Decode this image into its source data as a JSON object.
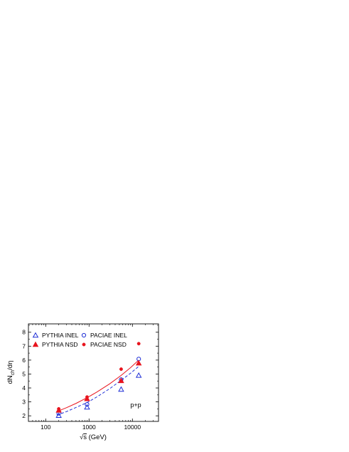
{
  "chart_data": {
    "type": "scatter",
    "x_scale": "log",
    "xlim": [
      40,
      40000
    ],
    "ylim": [
      1.6,
      8.6
    ],
    "x_ticks": [
      100,
      1000,
      10000
    ],
    "x_tick_labels": [
      "100",
      "1000",
      "10000"
    ],
    "y_ticks": [
      2,
      3,
      4,
      5,
      6,
      7,
      8
    ],
    "y_tick_labels": [
      "2",
      "3",
      "4",
      "5",
      "6",
      "7",
      "8"
    ],
    "xlabel_prefix": "√",
    "xlabel_var": "s",
    "xlabel_unit": " (GeV)",
    "ylabel_main": "dN",
    "ylabel_sub": "ch",
    "ylabel_tail": "/dη",
    "annotation": "p+p",
    "grid": false,
    "legend_position": "top-left",
    "series": [
      {
        "name": "PYTHIA INEL",
        "marker": "triangle-open",
        "color": "#1f2fd6",
        "x": [
          200,
          900,
          5500,
          14000
        ],
        "y": [
          2.02,
          2.62,
          3.9,
          4.9
        ]
      },
      {
        "name": "PACIAE INEL",
        "marker": "circle-open",
        "color": "#1f2fd6",
        "x": [
          200,
          900,
          5500,
          14000
        ],
        "y": [
          2.18,
          2.82,
          4.6,
          6.08
        ]
      },
      {
        "name": "PYTHIA NSD",
        "marker": "triangle-filled",
        "color": "#e8141e",
        "x": [
          200,
          900,
          5500,
          14000
        ],
        "y": [
          2.4,
          3.22,
          4.52,
          5.78
        ]
      },
      {
        "name": "PACIAE NSD",
        "marker": "circle-filled",
        "color": "#e8141e",
        "x": [
          200,
          900,
          5500,
          14000
        ],
        "y": [
          2.5,
          3.35,
          5.35,
          7.18
        ]
      }
    ],
    "curves": [
      {
        "style": "solid",
        "color": "#e8141e",
        "x": [
          180,
          300,
          500,
          900,
          1500,
          3000,
          5500,
          9000,
          14000
        ],
        "y": [
          2.3,
          2.58,
          2.89,
          3.3,
          3.7,
          4.3,
          4.9,
          5.45,
          6.0
        ]
      },
      {
        "style": "dashed",
        "color": "#1f2fd6",
        "x": [
          180,
          300,
          500,
          900,
          1500,
          3000,
          5500,
          9000,
          14000
        ],
        "y": [
          2.05,
          2.3,
          2.6,
          2.95,
          3.35,
          3.95,
          4.55,
          5.05,
          5.55
        ]
      }
    ]
  }
}
